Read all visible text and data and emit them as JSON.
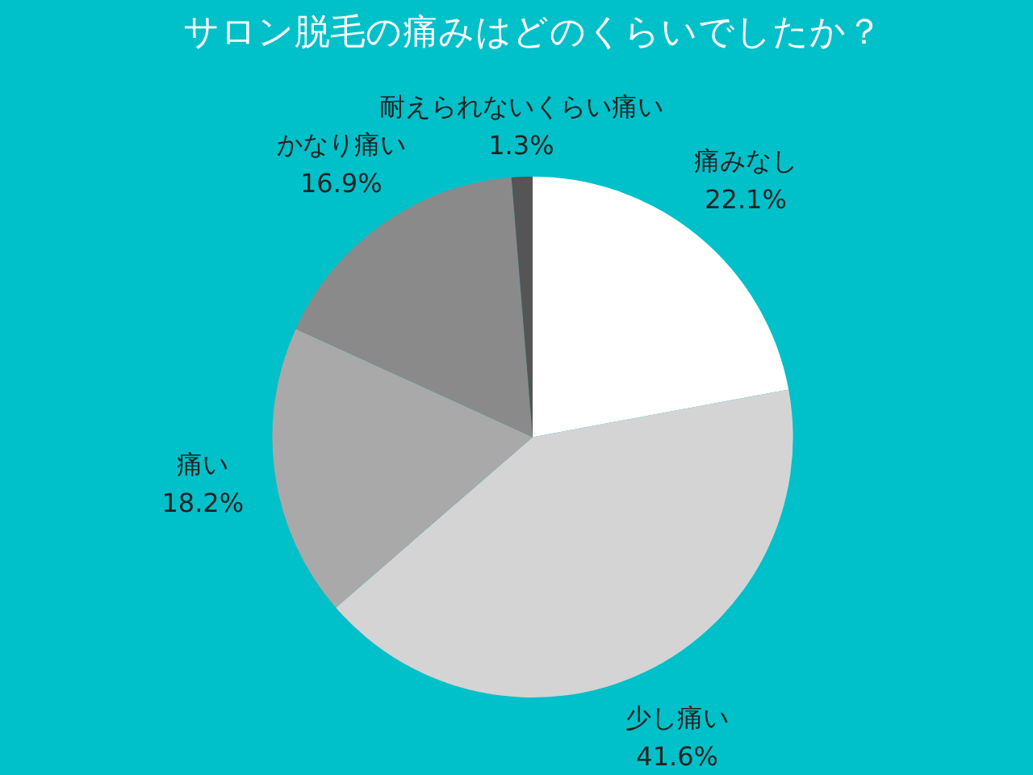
{
  "chart_data": {
    "type": "pie",
    "title": "サロン脱毛の痛みはどのくらいでしたか？",
    "categories": [
      "痛みなし",
      "少し痛い",
      "痛い",
      "かなり痛い",
      "耐えられないくらい痛い"
    ],
    "values": [
      22.1,
      41.6,
      18.2,
      16.9,
      1.3
    ],
    "value_labels": [
      "22.1%",
      "41.6%",
      "18.2%",
      "16.9%",
      "1.3%"
    ],
    "colors": [
      "#ffffff",
      "#d4d4d4",
      "#a9a9a9",
      "#8a8a8a",
      "#555555"
    ],
    "legend": false
  }
}
